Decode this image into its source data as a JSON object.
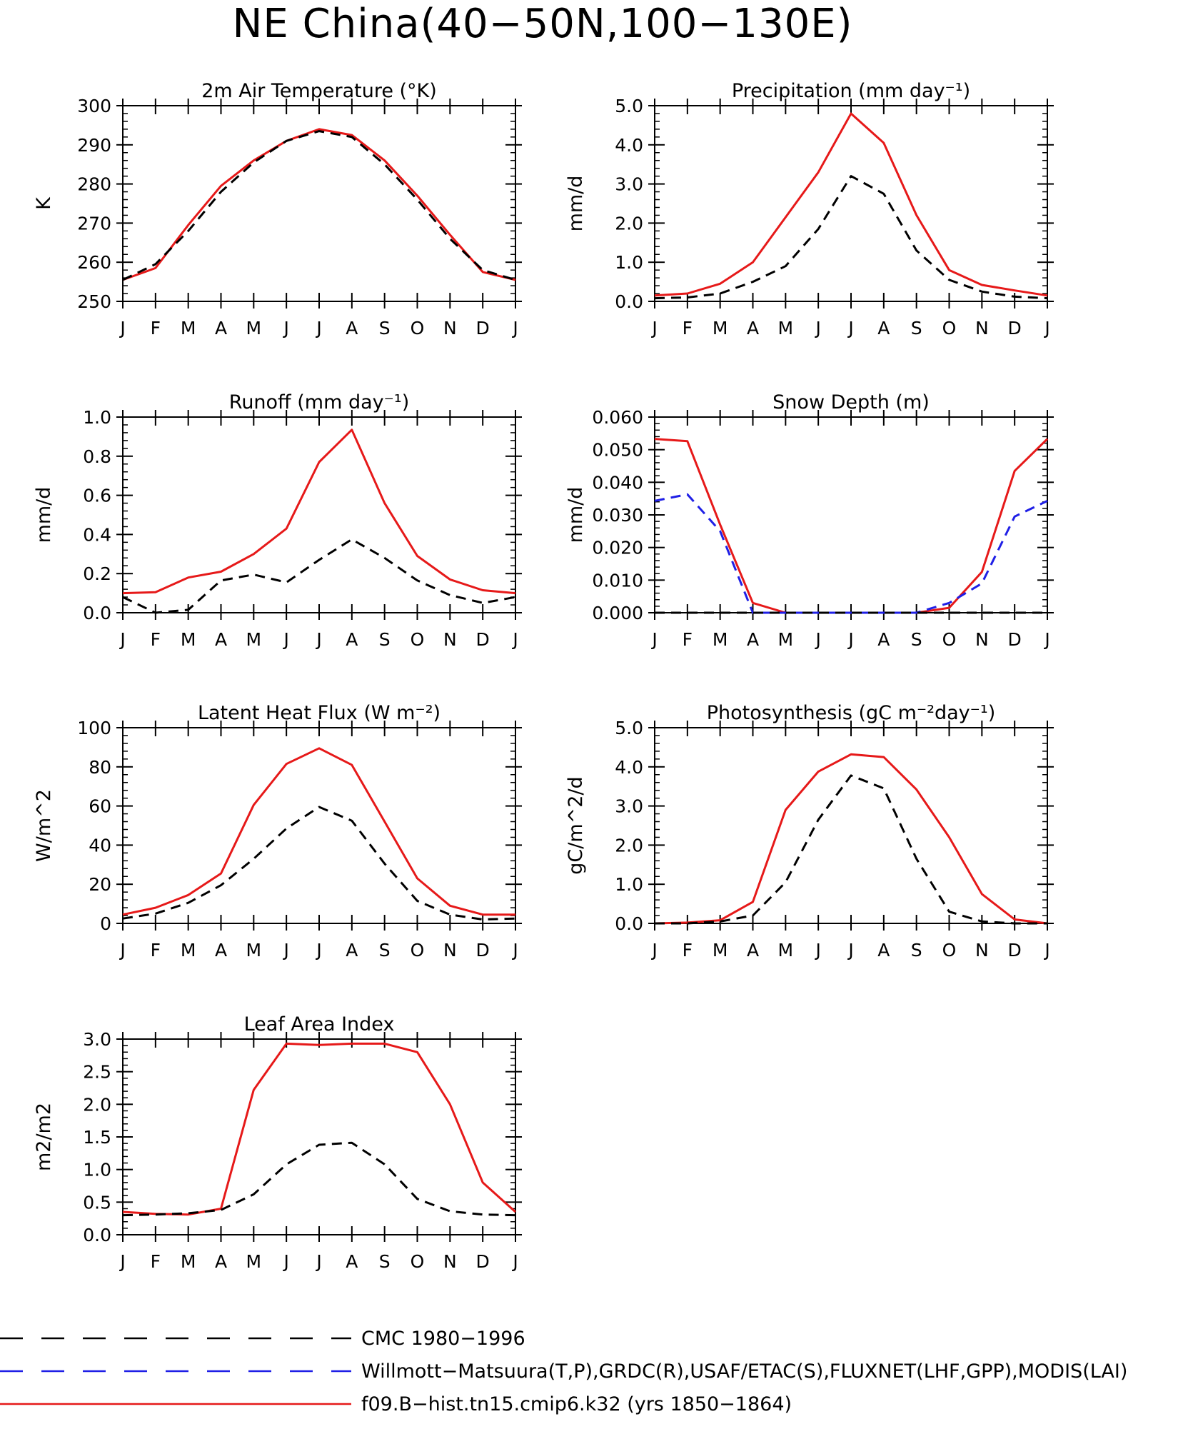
{
  "figure_title": "NE China(40−50N,100−130E)",
  "months": [
    "J",
    "F",
    "M",
    "A",
    "M",
    "J",
    "J",
    "A",
    "S",
    "O",
    "N",
    "D",
    "J"
  ],
  "legend": [
    {
      "label": "CMC 1980−1996",
      "color": "#000000",
      "dash": "dashed"
    },
    {
      "label": "Willmott−Matsuura(T,P),GRDC(R),USAF/ETAC(S),FLUXNET(LHF,GPP),MODIS(LAI)",
      "color": "#1f1fe6",
      "dash": "dashed"
    },
    {
      "label": "f09.B−hist.tn15.cmip6.k32 (yrs 1850−1864)",
      "color": "#e61919",
      "dash": "solid"
    }
  ],
  "chart_data": [
    {
      "type": "line",
      "title": "2m Air Temperature (°K)",
      "ylabel": "K",
      "ylim": [
        250,
        300
      ],
      "yticks": [
        "250",
        "260",
        "270",
        "280",
        "290",
        "300"
      ],
      "x": [
        "J",
        "F",
        "M",
        "A",
        "M",
        "J",
        "J",
        "A",
        "S",
        "O",
        "N",
        "D",
        "J"
      ],
      "series": [
        {
          "name": "f09.B−hist.tn15.cmip6.k32 (yrs 1850−1864)",
          "color": "#e61919",
          "dash": "solid",
          "values": [
            255.5,
            258.5,
            269.5,
            279.5,
            286.0,
            291.0,
            294.0,
            292.5,
            286.0,
            277.0,
            267.0,
            257.5,
            255.5
          ]
        },
        {
          "name": "CMC 1980−1996",
          "color": "#000000",
          "dash": "dashed",
          "values": [
            255.5,
            259.5,
            268.0,
            278.0,
            285.5,
            291.0,
            293.5,
            292.0,
            285.0,
            276.0,
            266.0,
            258.0,
            255.5
          ]
        }
      ]
    },
    {
      "type": "line",
      "title": "Precipitation (mm day⁻¹)",
      "ylabel": "mm/d",
      "ylim": [
        0,
        5
      ],
      "yticks": [
        "0.0",
        "1.0",
        "2.0",
        "3.0",
        "4.0",
        "5.0"
      ],
      "x": [
        "J",
        "F",
        "M",
        "A",
        "M",
        "J",
        "J",
        "A",
        "S",
        "O",
        "N",
        "D",
        "J"
      ],
      "series": [
        {
          "name": "f09.B−hist.tn15.cmip6.k32 (yrs 1850−1864)",
          "color": "#e61919",
          "dash": "solid",
          "values": [
            0.15,
            0.2,
            0.45,
            1.0,
            2.15,
            3.3,
            4.8,
            4.05,
            2.2,
            0.8,
            0.42,
            0.28,
            0.15
          ]
        },
        {
          "name": "CMC 1980−1996",
          "color": "#000000",
          "dash": "dashed",
          "values": [
            0.08,
            0.1,
            0.2,
            0.5,
            0.9,
            1.85,
            3.2,
            2.75,
            1.3,
            0.55,
            0.25,
            0.12,
            0.08
          ]
        }
      ]
    },
    {
      "type": "line",
      "title": "Runoff (mm day⁻¹)",
      "ylabel": "mm/d",
      "ylim": [
        0,
        1
      ],
      "yticks": [
        "0.0",
        "0.2",
        "0.4",
        "0.6",
        "0.8",
        "1.0"
      ],
      "x": [
        "J",
        "F",
        "M",
        "A",
        "M",
        "J",
        "J",
        "A",
        "S",
        "O",
        "N",
        "D",
        "J"
      ],
      "series": [
        {
          "name": "f09.B−hist.tn15.cmip6.k32 (yrs 1850−1864)",
          "color": "#e61919",
          "dash": "solid",
          "values": [
            0.1,
            0.105,
            0.18,
            0.21,
            0.3,
            0.43,
            0.77,
            0.935,
            0.56,
            0.29,
            0.17,
            0.115,
            0.1
          ]
        },
        {
          "name": "CMC 1980−1996",
          "color": "#000000",
          "dash": "dashed",
          "values": [
            0.08,
            0.0,
            0.015,
            0.165,
            0.195,
            0.155,
            0.27,
            0.375,
            0.28,
            0.165,
            0.09,
            0.05,
            0.08
          ]
        }
      ]
    },
    {
      "type": "line",
      "title": "Snow Depth (m)",
      "ylabel": "mm/d",
      "ylim": [
        0,
        0.06
      ],
      "yticks": [
        "0.000",
        "0.010",
        "0.020",
        "0.030",
        "0.040",
        "0.050",
        "0.060"
      ],
      "x": [
        "J",
        "F",
        "M",
        "A",
        "M",
        "J",
        "J",
        "A",
        "S",
        "O",
        "N",
        "D",
        "J"
      ],
      "series": [
        {
          "name": "f09.B−hist.tn15.cmip6.k32 (yrs 1850−1864)",
          "color": "#e61919",
          "dash": "solid",
          "values": [
            0.0533,
            0.0526,
            0.027,
            0.003,
            0.0,
            0.0,
            0.0,
            0.0,
            0.0,
            0.0015,
            0.0125,
            0.0435,
            0.0533
          ]
        },
        {
          "name": "Willmott−Matsuura(T,P),GRDC(R),USAF/ETAC(S),FLUXNET(LHF,GPP),MODIS(LAI)",
          "color": "#1f1fe6",
          "dash": "dashed",
          "values": [
            0.0343,
            0.0363,
            0.025,
            0.0,
            0.0,
            0.0,
            0.0,
            0.0,
            0.0,
            0.003,
            0.009,
            0.0295,
            0.0343
          ]
        },
        {
          "name": "CMC 1980−1996",
          "color": "#000000",
          "dash": "dashed",
          "values": [
            0,
            0,
            0,
            0,
            0,
            0,
            0,
            0,
            0,
            0,
            0,
            0,
            0
          ]
        }
      ]
    },
    {
      "type": "line",
      "title": "Latent Heat Flux (W m⁻²)",
      "ylabel": "W/m^2",
      "ylim": [
        0,
        100
      ],
      "yticks": [
        "0",
        "20",
        "40",
        "60",
        "80",
        "100"
      ],
      "x": [
        "J",
        "F",
        "M",
        "A",
        "M",
        "J",
        "J",
        "A",
        "S",
        "O",
        "N",
        "D",
        "J"
      ],
      "series": [
        {
          "name": "f09.B−hist.tn15.cmip6.k32 (yrs 1850−1864)",
          "color": "#e61919",
          "dash": "solid",
          "values": [
            4.5,
            8.0,
            14.5,
            25.5,
            60.5,
            81.5,
            89.5,
            81.0,
            52.0,
            23.0,
            9.0,
            4.5,
            4.5
          ]
        },
        {
          "name": "CMC 1980−1996",
          "color": "#000000",
          "dash": "dashed",
          "values": [
            2.5,
            5.0,
            10.5,
            19.5,
            33.0,
            48.5,
            59.5,
            52.5,
            30.5,
            11.5,
            4.5,
            2.0,
            2.5
          ]
        }
      ]
    },
    {
      "type": "line",
      "title": "Photosynthesis (gC m⁻²day⁻¹)",
      "ylabel": "gC/m^2/d",
      "ylim": [
        0,
        5
      ],
      "yticks": [
        "0.0",
        "1.0",
        "2.0",
        "3.0",
        "4.0",
        "5.0"
      ],
      "x": [
        "J",
        "F",
        "M",
        "A",
        "M",
        "J",
        "J",
        "A",
        "S",
        "O",
        "N",
        "D",
        "J"
      ],
      "series": [
        {
          "name": "f09.B−hist.tn15.cmip6.k32 (yrs 1850−1864)",
          "color": "#e61919",
          "dash": "solid",
          "values": [
            0.0,
            0.02,
            0.08,
            0.55,
            2.9,
            3.88,
            4.32,
            4.25,
            3.42,
            2.2,
            0.75,
            0.1,
            0.0
          ]
        },
        {
          "name": "CMC 1980−1996",
          "color": "#000000",
          "dash": "dashed",
          "values": [
            0.0,
            0.0,
            0.05,
            0.2,
            1.05,
            2.65,
            3.78,
            3.45,
            1.65,
            0.3,
            0.05,
            0.0,
            0.0
          ]
        }
      ]
    },
    {
      "type": "line",
      "title": "Leaf Area Index",
      "ylabel": "m2/m2",
      "ylim": [
        0,
        3
      ],
      "yticks": [
        "0.0",
        "0.5",
        "1.0",
        "1.5",
        "2.0",
        "2.5",
        "3.0"
      ],
      "x": [
        "J",
        "F",
        "M",
        "A",
        "M",
        "J",
        "J",
        "A",
        "S",
        "O",
        "N",
        "D",
        "J"
      ],
      "series": [
        {
          "name": "f09.B−hist.tn15.cmip6.k32 (yrs 1850−1864)",
          "color": "#e61919",
          "dash": "solid",
          "values": [
            0.35,
            0.32,
            0.31,
            0.4,
            2.22,
            2.93,
            2.91,
            2.93,
            2.93,
            2.8,
            2.0,
            0.8,
            0.35
          ]
        },
        {
          "name": "CMC 1980−1996",
          "color": "#000000",
          "dash": "dashed",
          "values": [
            0.3,
            0.31,
            0.33,
            0.38,
            0.62,
            1.08,
            1.38,
            1.41,
            1.08,
            0.55,
            0.36,
            0.31,
            0.3
          ]
        }
      ]
    }
  ]
}
